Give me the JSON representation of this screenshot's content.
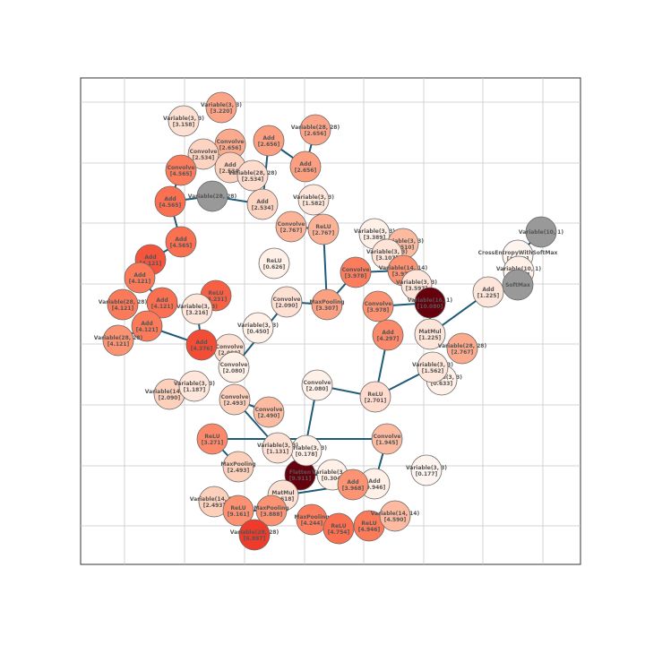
{
  "nodes": [
    {
      "op": "Variable(3, 3)",
      "value": "[3.220]",
      "color": "#fca487"
    },
    {
      "op": "Variable(3, 3)",
      "value": "[3.158]",
      "color": "#fee0d2"
    },
    {
      "op": "Convolve",
      "value": "[2.656]",
      "color": "#fcaa8e"
    },
    {
      "op": "Variable(28, 28)",
      "value": "[2.656]",
      "color": "#fca487"
    },
    {
      "op": "Add",
      "value": "[2.656]",
      "color": "#fc9e80"
    },
    {
      "op": "Convolve",
      "value": "[2.534]",
      "color": "#fdd4c2"
    },
    {
      "op": "Add",
      "value": "[2.534]",
      "color": "#fdd0bc"
    },
    {
      "op": "Variable(28, 28)",
      "value": "[2.534]",
      "color": "#fedbcc"
    },
    {
      "op": "Add",
      "value": "[2.656]",
      "color": "#fc9e80"
    },
    {
      "op": "Convolve",
      "value": "[4.565]",
      "color": "#fb7d5d"
    },
    {
      "op": "Variable(28, 28)",
      "color": "#999999"
    },
    {
      "op": "Add",
      "value": "[4.565]",
      "color": "#fb7050"
    },
    {
      "op": "Add",
      "value": "[2.534]",
      "color": "#fdd4c2"
    },
    {
      "op": "Variable(3, 3)",
      "value": "[1.582]",
      "color": "#fee6da"
    },
    {
      "op": "Convolve",
      "value": "[2.767]",
      "color": "#fcb398"
    },
    {
      "op": "ReLU",
      "value": "[2.767]",
      "color": "#fcb296"
    },
    {
      "op": "Add",
      "value": "[4.565]",
      "color": "#fb7050"
    },
    {
      "op": "Add",
      "value": "[4.121]",
      "color": "#f5553c"
    },
    {
      "op": "Add",
      "value": "[4.121]",
      "color": "#fb7a5a"
    },
    {
      "op": "ReLU",
      "value": "[3.231]",
      "color": "#f86044"
    },
    {
      "op": "Variable(28, 28)",
      "value": "[4.121]",
      "color": "#fb7a5a"
    },
    {
      "op": "Add",
      "value": "[4.121]",
      "color": "#fb7050"
    },
    {
      "op": "Add",
      "value": "[4.121]",
      "color": "#fb7a5a"
    },
    {
      "op": "Variable(28, 28)",
      "value": "[4.121]",
      "color": "#fc9474"
    },
    {
      "op": "Variable(3, 3)",
      "value": "[3.216]",
      "color": "#fee6da"
    },
    {
      "op": "ReLU",
      "value": "[0.626]",
      "color": "#fff0e8"
    },
    {
      "op": "Convolve",
      "value": "[3.978]",
      "color": "#fb7d5d"
    },
    {
      "op": "Variable(3, 3)",
      "value": "[3.389]",
      "color": "#fff0e8"
    },
    {
      "op": "Variable(3, 3)",
      "value": "[3.510]",
      "color": "#fcbba1"
    },
    {
      "op": "Variable(3, 3)",
      "value": "[3.107]",
      "color": "#fee3d6"
    },
    {
      "op": "Variable(14, 14)",
      "value": "[3.978]",
      "color": "#fc9272"
    },
    {
      "op": "Variable(3, 3)",
      "value": "[3.597]",
      "color": "#fee5d9"
    },
    {
      "op": "Variable(16, 1)",
      "value": "[10.080]",
      "color": "#67000d"
    },
    {
      "op": "Variable(10, 1)",
      "color": "#999999"
    },
    {
      "op": "CrossEntropyWithSoftMax",
      "value": "[1.860]",
      "color": "#fff5f0"
    },
    {
      "op": "Variable(10, 1)",
      "value": "[1.225]",
      "color": "#fff0e8"
    },
    {
      "op": "SoftMax",
      "color": "#999999"
    },
    {
      "op": "Add",
      "value": "[1.225]",
      "color": "#fee5d9"
    },
    {
      "op": "MatMul",
      "value": "[1.225]",
      "color": "#fee5d9"
    },
    {
      "op": "Variable(28, 28)",
      "value": "[2.767]",
      "color": "#fcaa8e"
    },
    {
      "op": "Add",
      "value": "[4.297]",
      "color": "#fc8a6a"
    },
    {
      "op": "Convolve",
      "value": "[3.978]",
      "color": "#fc9272"
    },
    {
      "op": "MaxPooling",
      "value": "[3.307]",
      "color": "#fca082"
    },
    {
      "op": "Convolve",
      "value": "[2.090]",
      "color": "#fee0d2"
    },
    {
      "op": "Convolve",
      "value": "[2.090]",
      "color": "#fee0d2"
    },
    {
      "op": "Convolve",
      "value": "[2.080]",
      "color": "#fff0e8"
    },
    {
      "op": "Variable(14, 14)",
      "value": "[2.090]",
      "color": "#fdd0bc"
    },
    {
      "op": "Convolve",
      "value": "[2.080]",
      "color": "#fff0e8"
    },
    {
      "op": "ReLU",
      "value": "[2.701]",
      "color": "#fedbcc"
    },
    {
      "op": "Variable(3, 3)",
      "value": "[0.633]",
      "color": "#fff0e8"
    },
    {
      "op": "Variable(3, 3)",
      "value": "[1.562]",
      "color": "#fee6da"
    },
    {
      "op": "ReLU",
      "value": "[3.271]",
      "color": "#fc8a6a"
    },
    {
      "op": "MaxPooling",
      "value": "[2.493]",
      "color": "#fdd0bc"
    },
    {
      "op": "Flatten",
      "value": "[9.911]",
      "color": "#67000d"
    },
    {
      "op": "Variable(3, 3)",
      "value": "[0.178]",
      "color": "#fff0e8"
    },
    {
      "op": "Variable(3, 3)",
      "value": "[0.304]",
      "color": "#fff0e8"
    },
    {
      "op": "MatMul",
      "value": "[1.618]",
      "color": "#fee0d2"
    },
    {
      "op": "Add",
      "value": "[0.946]",
      "color": "#fff0e8"
    },
    {
      "op": "Add",
      "value": "[3.968]",
      "color": "#fc9474"
    },
    {
      "op": "Variable(14, 14)",
      "value": "[2.493]",
      "color": "#fdd0bc"
    },
    {
      "op": "ReLU",
      "value": "[9.161]",
      "color": "#fc9272"
    },
    {
      "op": "MaxPooling",
      "value": "[3.888]",
      "color": "#fc9474"
    },
    {
      "op": "MaxPooling",
      "value": "[4.244]",
      "color": "#fb7d5d"
    },
    {
      "op": "ReLU",
      "value": "[4.754]",
      "color": "#fb7050"
    },
    {
      "op": "ReLU",
      "value": "[4.946]",
      "color": "#fb7a5a"
    },
    {
      "op": "Variable(14, 14)",
      "value": "[4.590]",
      "color": "#fcbba1"
    },
    {
      "op": "Variable(3, 3)",
      "value": "[0.177]",
      "color": "#fff5f0"
    },
    {
      "op": "Variable(28, 28)",
      "value": "[6.887]",
      "color": "#ef3b2c"
    },
    {
      "op": "Convolve",
      "value": "[1.945]",
      "color": "#fcbba1"
    },
    {
      "op": "Variable(3, 3)",
      "value": "[1.131]",
      "color": "#fee0d2"
    },
    {
      "op": "Variable(3, 3)",
      "value": "[1.187]",
      "color": "#fee6da"
    },
    {
      "op": "Add",
      "value": "[4.376]",
      "color": "#f44d36"
    },
    {
      "op": "Variable(3, 3)",
      "value": "[0.450]",
      "color": "#fff0e8"
    },
    {
      "op": "Convolve",
      "value": "[2.490]",
      "color": "#fcbba1"
    },
    {
      "op": "Convolve",
      "value": "[2.493]",
      "color": "#fdd0bc"
    }
  ]
}
